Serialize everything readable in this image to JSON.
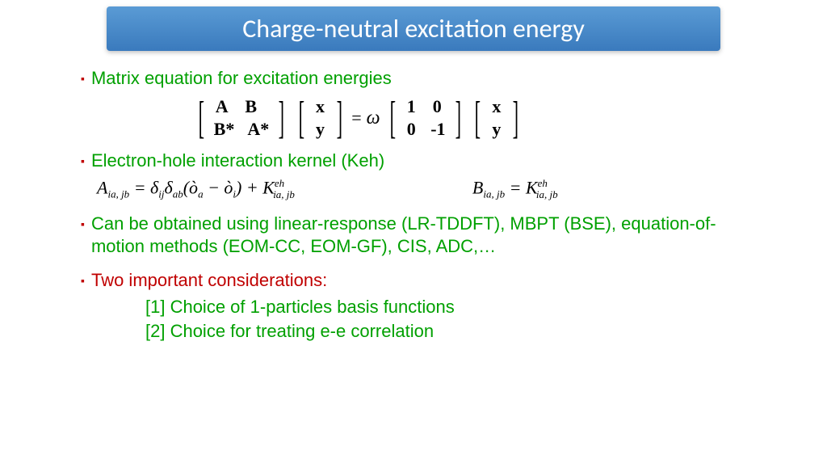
{
  "colors": {
    "title_bg_top": "#5a9bd5",
    "title_bg_bottom": "#3a7abd",
    "title_text": "#ffffff",
    "bullet_square": "#c00000",
    "green_text": "#00a000",
    "red_text": "#c00000",
    "black_text": "#000000"
  },
  "fonts": {
    "title_family": "Calibri, Arial, sans-serif",
    "body_family": "Comic Sans MS, cursive",
    "math_family": "Times New Roman, serif",
    "title_size_pt": 24,
    "body_size_pt": 17,
    "math_size_pt": 17
  },
  "title": "Charge-neutral excitation energy",
  "bullets": {
    "b1": "Matrix equation for excitation energies",
    "b2": "Electron-hole interaction kernel (Keh)",
    "b3": "Can be obtained using linear-response (LR-TDDFT), MBPT (BSE), equation-of-motion methods (EOM-CC, EOM-GF), CIS, ADC,…",
    "b4": "Two important considerations:",
    "sub1": "[1] Choice of 1-particles basis functions",
    "sub2": "[2] Choice for treating e-e correlation"
  },
  "matrix_eq": {
    "m1": [
      [
        "A",
        "B"
      ],
      [
        "B*",
        "A*"
      ]
    ],
    "v1": [
      "x",
      "y"
    ],
    "eq": "=",
    "omega": "ω",
    "m2": [
      [
        "1",
        "0"
      ],
      [
        "0",
        "-1"
      ]
    ],
    "v2": [
      "x",
      "y"
    ]
  },
  "formulas": {
    "A_lhs": "A",
    "A_sub": "ia, jb",
    "A_rhs_1": " = δ",
    "A_rhs_2": "ij",
    "A_rhs_3": "δ",
    "A_rhs_4": "ab",
    "A_rhs_5": "(ò",
    "A_rhs_6": "a",
    "A_rhs_7": " − ò",
    "A_rhs_8": "i",
    "A_rhs_9": ") + K",
    "A_sup": "eh",
    "A_sub2": "ia, jb",
    "B_lhs": "B",
    "B_sub": "ia, jb",
    "B_rhs_1": " = K",
    "B_sup": "eh",
    "B_sub2": "ia, jb"
  }
}
